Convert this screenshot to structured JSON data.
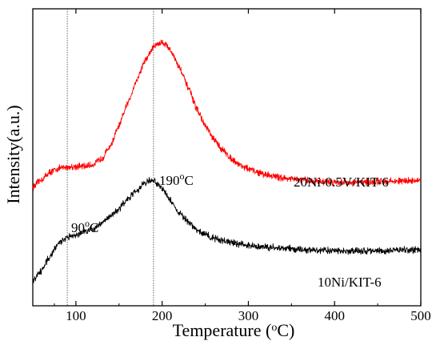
{
  "chart_data": {
    "type": "line",
    "xlabel": "Temperature (",
    "xlabel_sup": "o",
    "xlabel_unit": "C)",
    "ylabel": "Intensity(a.u.)",
    "xlim": [
      50,
      500
    ],
    "ylim": [
      0,
      1
    ],
    "y_ticks_shown": false,
    "x_ticks": [
      100,
      200,
      300,
      400,
      500
    ],
    "x_tick_labels": [
      "100",
      "200",
      "300",
      "400",
      "500"
    ],
    "grid": false,
    "reference_lines_x": [
      90,
      190
    ],
    "series": [
      {
        "name": "20Ni-0.5V/KIT-6",
        "color": "#ff0000",
        "x": [
          50,
          60,
          70,
          80,
          90,
          100,
          110,
          120,
          130,
          140,
          150,
          160,
          170,
          180,
          190,
          195,
          200,
          205,
          210,
          220,
          230,
          240,
          250,
          260,
          270,
          280,
          290,
          300,
          310,
          320,
          340,
          360,
          380,
          400,
          420,
          440,
          460,
          480,
          500
        ],
        "y": [
          0.395,
          0.425,
          0.455,
          0.47,
          0.475,
          0.478,
          0.478,
          0.485,
          0.51,
          0.56,
          0.64,
          0.73,
          0.82,
          0.9,
          0.955,
          0.97,
          0.975,
          0.965,
          0.94,
          0.875,
          0.795,
          0.71,
          0.64,
          0.585,
          0.545,
          0.51,
          0.485,
          0.468,
          0.455,
          0.445,
          0.432,
          0.423,
          0.418,
          0.415,
          0.414,
          0.416,
          0.418,
          0.42,
          0.422
        ]
      },
      {
        "name": "10Ni/KIT-6",
        "color": "#000000",
        "x": [
          50,
          60,
          70,
          80,
          90,
          100,
          110,
          120,
          130,
          140,
          150,
          160,
          170,
          180,
          185,
          190,
          195,
          200,
          210,
          220,
          230,
          240,
          250,
          260,
          270,
          280,
          300,
          320,
          340,
          360,
          380,
          400,
          420,
          440,
          460,
          480,
          500
        ],
        "y": [
          0.02,
          0.06,
          0.12,
          0.17,
          0.195,
          0.205,
          0.215,
          0.23,
          0.25,
          0.28,
          0.31,
          0.345,
          0.38,
          0.41,
          0.42,
          0.42,
          0.41,
          0.39,
          0.34,
          0.29,
          0.255,
          0.225,
          0.205,
          0.19,
          0.18,
          0.172,
          0.162,
          0.155,
          0.15,
          0.145,
          0.142,
          0.14,
          0.139,
          0.14,
          0.141,
          0.143,
          0.145
        ]
      }
    ],
    "annotations": [
      {
        "id": "anno_190",
        "base": "190",
        "sup": "o",
        "unit": "C"
      },
      {
        "id": "anno_90",
        "base": "90",
        "sup": "o",
        "unit": "C"
      },
      {
        "id": "label_red",
        "text": "20Ni-0.5V/KIT-6"
      },
      {
        "id": "label_black",
        "text": "10Ni/KIT-6"
      }
    ]
  }
}
